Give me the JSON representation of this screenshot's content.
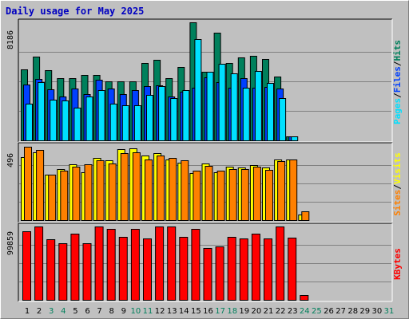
{
  "title": "Daily usage for May 2025",
  "colors": {
    "hits": "#00805c",
    "files": "#0040ff",
    "pages": "#00e0ff",
    "visits": "#ffff00",
    "sites": "#ff8000",
    "kbytes": "#ff0000",
    "weekday_label": "#000000",
    "weekend_label": "#00805c"
  },
  "chart_data": [
    {
      "type": "bar",
      "panel": "top",
      "max_label": "8186",
      "ylim": [
        0,
        8186
      ],
      "categories": [
        "1",
        "2",
        "3",
        "4",
        "5",
        "6",
        "7",
        "8",
        "9",
        "10",
        "11",
        "12",
        "13",
        "14",
        "15",
        "16",
        "17",
        "18",
        "19",
        "20",
        "21",
        "22",
        "23",
        "24",
        "25",
        "26",
        "27",
        "28",
        "29",
        "30",
        "31"
      ],
      "weekend_days": [
        "3",
        "4",
        "10",
        "11",
        "17",
        "18",
        "24",
        "25",
        "31"
      ],
      "legend": [
        {
          "text": "Pages",
          "color": "#00e0ff"
        },
        {
          "text": "/",
          "color": "#000000"
        },
        {
          "text": "Files",
          "color": "#0040ff"
        },
        {
          "text": "/",
          "color": "#000000"
        },
        {
          "text": "Hits",
          "color": "#00805c"
        }
      ],
      "series": [
        {
          "name": "Hits",
          "color": "#00805c",
          "values": [
            4940,
            5783,
            4879,
            4301,
            4301,
            4519,
            4519,
            4066,
            4066,
            4083,
            5348,
            5565,
            4324,
            5100,
            8186,
            4747,
            7441,
            5375,
            5767,
            5841,
            5655,
            4421,
            290,
            0,
            0,
            0,
            0,
            0,
            0,
            0,
            0
          ]
        },
        {
          "name": "Files",
          "color": "#0040ff",
          "values": [
            3848,
            4234,
            3513,
            3023,
            3611,
            3215,
            4180,
            3568,
            3231,
            3482,
            3776,
            3812,
            3068,
            3376,
            3633,
            4362,
            4039,
            3626,
            4321,
            3648,
            3698,
            3620,
            290,
            0,
            0,
            0,
            0,
            0,
            0,
            0,
            0
          ]
        },
        {
          "name": "Pages",
          "color": "#00e0ff",
          "values": [
            2535,
            4065,
            2813,
            2759,
            2264,
            3053,
            3511,
            2542,
            2439,
            2431,
            3157,
            3741,
            2942,
            3460,
            7027,
            4758,
            5289,
            4655,
            3665,
            4817,
            3987,
            2951,
            290,
            0,
            0,
            0,
            0,
            0,
            0,
            0,
            0
          ]
        }
      ]
    },
    {
      "type": "bar",
      "panel": "middle",
      "max_label": "496",
      "ylim": [
        0,
        496
      ],
      "categories": [
        "1",
        "2",
        "3",
        "4",
        "5",
        "6",
        "7",
        "8",
        "9",
        "10",
        "11",
        "12",
        "13",
        "14",
        "15",
        "16",
        "17",
        "18",
        "19",
        "20",
        "21",
        "22",
        "23",
        "24",
        "25",
        "26",
        "27",
        "28",
        "29",
        "30",
        "31"
      ],
      "legend": [
        {
          "text": "Sites",
          "color": "#ff8000"
        },
        {
          "text": "/",
          "color": "#000000"
        },
        {
          "text": "Visits",
          "color": "#ffff00"
        }
      ],
      "series": [
        {
          "name": "Visits",
          "color": "#ffff00",
          "values": [
            424,
            460,
            309,
            346,
            375,
            325,
            418,
            405,
            480,
            483,
            434,
            452,
            412,
            390,
            318,
            382,
            322,
            361,
            356,
            371,
            355,
            412,
            409,
            36,
            0,
            0,
            0,
            0,
            0,
            0,
            0
          ]
        },
        {
          "name": "Sites",
          "color": "#ff8000",
          "values": [
            496,
            473,
            306,
            336,
            362,
            376,
            407,
            381,
            452,
            457,
            411,
            436,
            422,
            402,
            332,
            369,
            332,
            345,
            343,
            362,
            340,
            398,
            408,
            58,
            0,
            0,
            0,
            0,
            0,
            0,
            0
          ]
        }
      ]
    },
    {
      "type": "bar",
      "panel": "bottom",
      "max_label": "99859",
      "ylim": [
        0,
        99859
      ],
      "categories": [
        "1",
        "2",
        "3",
        "4",
        "5",
        "6",
        "7",
        "8",
        "9",
        "10",
        "11",
        "12",
        "13",
        "14",
        "15",
        "16",
        "17",
        "18",
        "19",
        "20",
        "21",
        "22",
        "23",
        "24",
        "25",
        "26",
        "27",
        "28",
        "29",
        "30",
        "31"
      ],
      "legend": [
        {
          "text": "KBytes",
          "color": "#ff0000"
        }
      ],
      "series": [
        {
          "name": "KBytes",
          "color": "#ff0000",
          "values": [
            92920,
            99859,
            82115,
            76536,
            90129,
            76536,
            99859,
            97070,
            85811,
            97070,
            83509,
            99859,
            99859,
            85811,
            97070,
            70957,
            72352,
            85811,
            83509,
            90129,
            83509,
            99859,
            84161,
            6508,
            0,
            0,
            0,
            0,
            0,
            0,
            0
          ]
        }
      ]
    }
  ]
}
